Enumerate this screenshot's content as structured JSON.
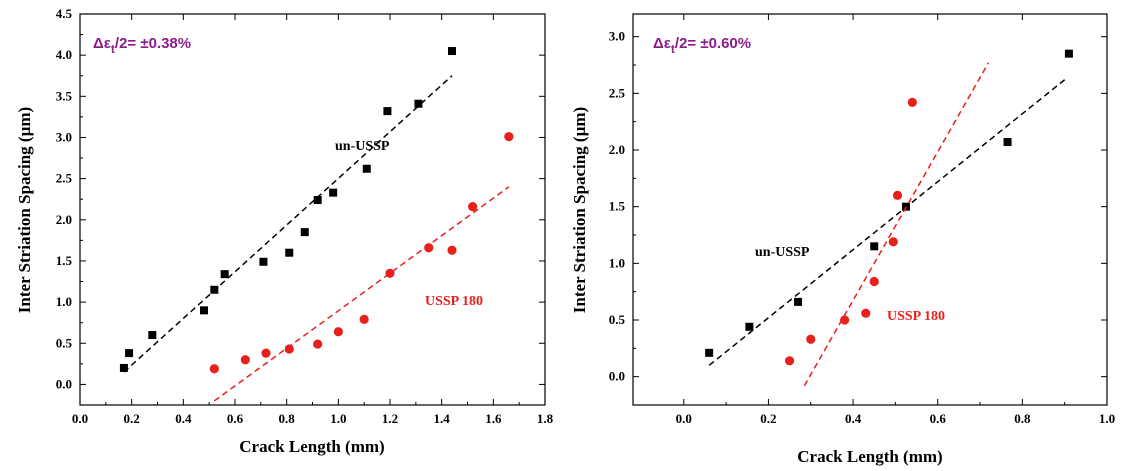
{
  "colors": {
    "un_ussp": "#000000",
    "ussp180": "#e8201c",
    "strain_label": "#8a1d8a"
  },
  "chart_data": [
    {
      "type": "scatter",
      "xlabel": "Crack Length (mm)",
      "ylabel": "Inter Striation Spacing (µm)",
      "xlim": [
        0.0,
        1.8
      ],
      "ylim": [
        -0.25,
        4.5
      ],
      "xticks": [
        "0.0",
        "0.2",
        "0.4",
        "0.6",
        "0.8",
        "1.0",
        "1.2",
        "1.4",
        "1.6",
        "1.8"
      ],
      "yticks": [
        "0.0",
        "0.5",
        "1.0",
        "1.5",
        "2.0",
        "2.5",
        "3.0",
        "3.5",
        "4.0",
        "4.5"
      ],
      "grid": false,
      "annotation": "Δεt/2= ±0.38%",
      "series": [
        {
          "name": "un-USSP",
          "marker": "square",
          "color": "#000000",
          "x": [
            0.17,
            0.19,
            0.28,
            0.48,
            0.52,
            0.56,
            0.71,
            0.81,
            0.87,
            0.92,
            0.98,
            1.11,
            1.19,
            1.31,
            1.44
          ],
          "y": [
            0.2,
            0.38,
            0.6,
            0.9,
            1.15,
            1.34,
            1.49,
            1.6,
            1.85,
            2.24,
            2.33,
            2.62,
            3.32,
            3.41,
            4.05
          ],
          "fit": [
            [
              0.17,
              0.15
            ],
            [
              1.44,
              3.75
            ]
          ]
        },
        {
          "name": "USSP 180",
          "marker": "circle",
          "color": "#e8201c",
          "x": [
            0.52,
            0.64,
            0.72,
            0.81,
            0.92,
            1.0,
            1.1,
            1.2,
            1.35,
            1.44,
            1.52,
            1.66
          ],
          "y": [
            0.19,
            0.3,
            0.38,
            0.43,
            0.49,
            0.64,
            0.79,
            1.35,
            1.66,
            1.63,
            2.16,
            3.01
          ],
          "fit": [
            [
              0.52,
              -0.2
            ],
            [
              1.66,
              2.4
            ]
          ]
        }
      ]
    },
    {
      "type": "scatter",
      "xlabel": "Crack Length (mm)",
      "ylabel": "Inter Striation Spacing (µm)",
      "xlim": [
        -0.12,
        1.0
      ],
      "ylim": [
        -0.25,
        3.2
      ],
      "xticks": [
        "0.0",
        "0.2",
        "0.4",
        "0.6",
        "0.8",
        "1.0"
      ],
      "yticks": [
        "0.0",
        "0.5",
        "1.0",
        "1.5",
        "2.0",
        "2.5",
        "3.0"
      ],
      "grid": false,
      "annotation": "Δεt/2= ±0.60%",
      "series": [
        {
          "name": "un-USSP",
          "marker": "square",
          "color": "#000000",
          "x": [
            0.06,
            0.155,
            0.27,
            0.45,
            0.525,
            0.765,
            0.91
          ],
          "y": [
            0.21,
            0.44,
            0.66,
            1.15,
            1.5,
            2.07,
            2.85
          ],
          "fit": [
            [
              0.06,
              0.1
            ],
            [
              0.9,
              2.62
            ]
          ]
        },
        {
          "name": "USSP 180",
          "marker": "circle",
          "color": "#e8201c",
          "x": [
            0.25,
            0.3,
            0.38,
            0.43,
            0.45,
            0.495,
            0.505,
            0.54
          ],
          "y": [
            0.14,
            0.33,
            0.5,
            0.56,
            0.84,
            1.19,
            1.6,
            2.42
          ],
          "fit": [
            [
              0.285,
              -0.08
            ],
            [
              0.72,
              2.77
            ]
          ]
        }
      ]
    }
  ]
}
